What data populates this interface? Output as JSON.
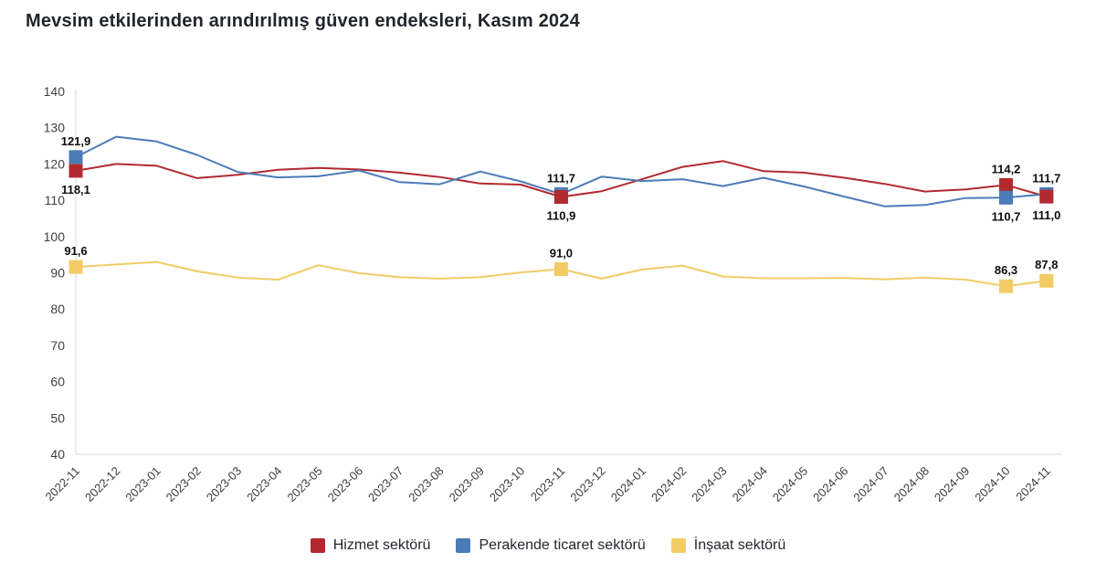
{
  "chart_data": {
    "type": "line",
    "title": "Mevsim etkilerinden arındırılmış güven endeksleri, Kasım 2024",
    "xlabel": "",
    "ylabel": "",
    "y_axis": {
      "min": 40,
      "max": 140,
      "tick_interval": 10
    },
    "grid": "off",
    "legend_position": "bottom",
    "categories": [
      "2022-11",
      "2022-12",
      "2023-01",
      "2023-02",
      "2023-03",
      "2023-04",
      "2023-05",
      "2023-06",
      "2023-07",
      "2023-08",
      "2023-09",
      "2023-10",
      "2023-11",
      "2023-12",
      "2024-01",
      "2024-02",
      "2024-03",
      "2024-04",
      "2024-05",
      "2024-06",
      "2024-07",
      "2024-08",
      "2024-09",
      "2024-10",
      "2024-11"
    ],
    "series": [
      {
        "name": "Hizmet sektörü",
        "color": "#B12A30",
        "values": [
          118.1,
          120.0,
          119.5,
          116.1,
          117.0,
          118.4,
          118.9,
          118.5,
          117.6,
          116.4,
          114.6,
          114.3,
          110.9,
          112.5,
          115.8,
          119.2,
          120.8,
          118.0,
          117.6,
          116.2,
          114.5,
          112.4,
          113.0,
          114.2,
          111.0
        ]
      },
      {
        "name": "Perakende ticaret sektörü",
        "color": "#4B7CB8",
        "values": [
          121.9,
          127.5,
          126.2,
          122.5,
          117.8,
          116.3,
          116.6,
          118.2,
          115.0,
          114.4,
          117.9,
          115.2,
          111.7,
          116.5,
          115.3,
          115.8,
          113.9,
          116.2,
          113.8,
          111.0,
          108.3,
          108.7,
          110.6,
          110.7,
          111.7
        ]
      },
      {
        "name": "İnşaat sektörü",
        "color": "#F1CC66",
        "values": [
          91.6,
          92.3,
          93.0,
          90.4,
          88.7,
          88.1,
          92.1,
          89.9,
          88.8,
          88.4,
          88.8,
          90.1,
          91.0,
          88.4,
          90.9,
          92.0,
          89.0,
          88.5,
          88.5,
          88.6,
          88.2,
          88.7,
          88.1,
          86.3,
          87.8
        ]
      }
    ],
    "labeled_points": [
      {
        "series": 1,
        "index": 0,
        "label": "121,9",
        "placement": "above"
      },
      {
        "series": 0,
        "index": 0,
        "label": "118,1",
        "placement": "below"
      },
      {
        "series": 2,
        "index": 0,
        "label": "91,6",
        "placement": "above"
      },
      {
        "series": 1,
        "index": 12,
        "label": "111,7",
        "placement": "above"
      },
      {
        "series": 0,
        "index": 12,
        "label": "110,9",
        "placement": "below"
      },
      {
        "series": 2,
        "index": 12,
        "label": "91,0",
        "placement": "above"
      },
      {
        "series": 0,
        "index": 23,
        "label": "114,2",
        "placement": "above"
      },
      {
        "series": 1,
        "index": 23,
        "label": "110,7",
        "placement": "below"
      },
      {
        "series": 2,
        "index": 23,
        "label": "86,3",
        "placement": "above"
      },
      {
        "series": 1,
        "index": 24,
        "label": "111,7",
        "placement": "above"
      },
      {
        "series": 0,
        "index": 24,
        "label": "111,0",
        "placement": "below"
      },
      {
        "series": 2,
        "index": 24,
        "label": "87,8",
        "placement": "above"
      }
    ],
    "axis_color": "#d9d9d9"
  }
}
